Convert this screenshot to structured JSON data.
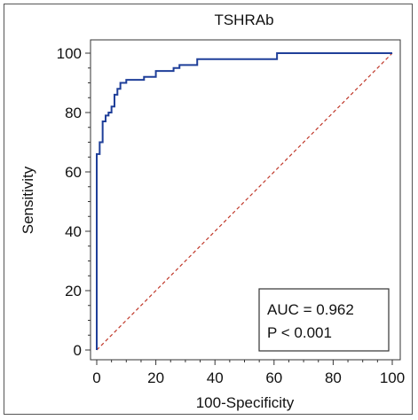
{
  "chart_data": {
    "type": "line",
    "title": "TSHRAb",
    "xlabel": "100-Specificity",
    "ylabel": "Sensitivity",
    "xlim": [
      0,
      100
    ],
    "ylim": [
      0,
      100
    ],
    "xticks": [
      0,
      20,
      40,
      60,
      80,
      100
    ],
    "yticks": [
      0,
      20,
      40,
      60,
      80,
      100
    ],
    "grid": false,
    "series": [
      {
        "name": "",
        "style": "step",
        "color": "#1f3f99",
        "points": [
          [
            0,
            0
          ],
          [
            0,
            66
          ],
          [
            1,
            66
          ],
          [
            1,
            70
          ],
          [
            2,
            70
          ],
          [
            2,
            77
          ],
          [
            3,
            77
          ],
          [
            3,
            79
          ],
          [
            4,
            79
          ],
          [
            4,
            80
          ],
          [
            5,
            80
          ],
          [
            5,
            82
          ],
          [
            6,
            82
          ],
          [
            6,
            86
          ],
          [
            7,
            86
          ],
          [
            7,
            88
          ],
          [
            8,
            88
          ],
          [
            8,
            90
          ],
          [
            10,
            90
          ],
          [
            10,
            91
          ],
          [
            16,
            91
          ],
          [
            16,
            92
          ],
          [
            20,
            92
          ],
          [
            20,
            94
          ],
          [
            26,
            94
          ],
          [
            26,
            95
          ],
          [
            28,
            95
          ],
          [
            28,
            96
          ],
          [
            34,
            96
          ],
          [
            34,
            98
          ],
          [
            61,
            98
          ],
          [
            61,
            100
          ],
          [
            100,
            100
          ]
        ]
      },
      {
        "name": "",
        "style": "reference",
        "color": "#c0392b",
        "points": [
          [
            0,
            0
          ],
          [
            100,
            100
          ]
        ]
      }
    ],
    "annotation": {
      "lines": [
        "AUC = 0.962",
        "P < 0.001"
      ],
      "position": "bottom-right"
    }
  }
}
